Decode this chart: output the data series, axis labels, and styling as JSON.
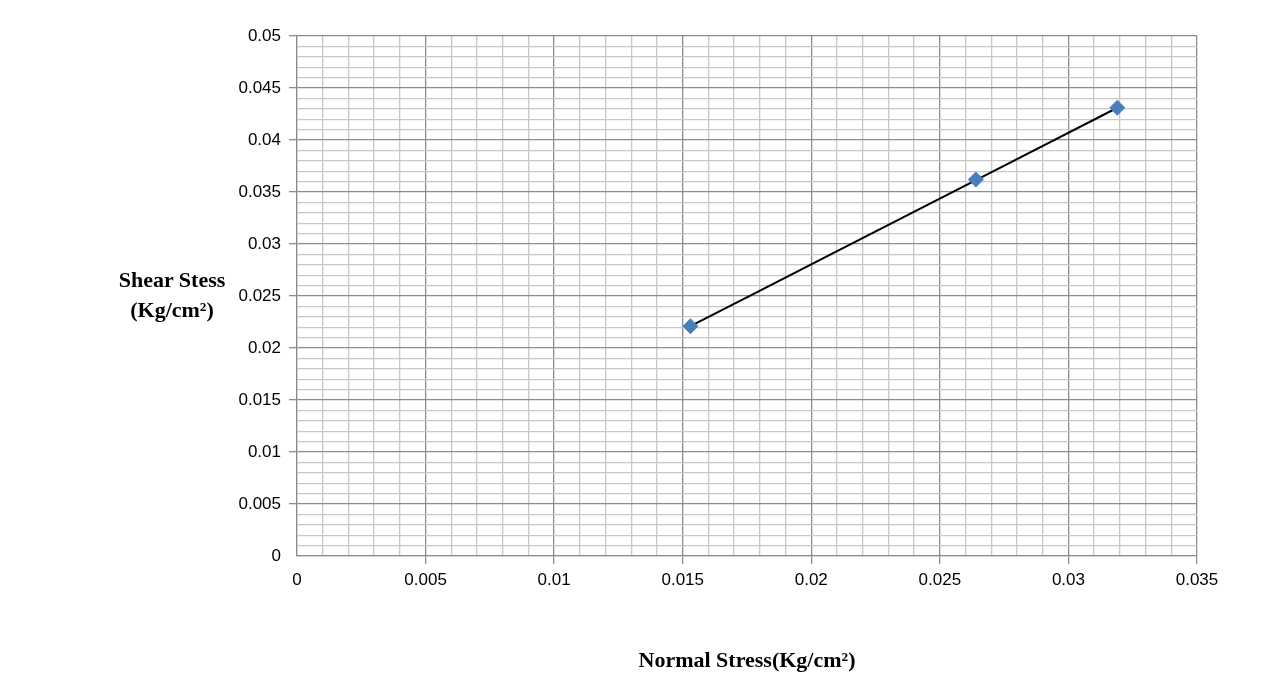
{
  "chart_data": {
    "type": "scatter",
    "xlabel": "Normal Stress(Kg/cm²)",
    "ylabel": "Shear Stess (Kg/cm²)",
    "xlim": [
      0,
      0.035
    ],
    "xticks": [
      0,
      {
        "value": 0.001,
        "label": null
      },
      {
        "value": 0.002,
        "label": null
      },
      {
        "value": 0.003,
        "label": null
      },
      {
        "value": 0.004,
        "label": null
      },
      0.005,
      {
        "value": 0.006,
        "label": null
      },
      {
        "value": 0.007,
        "label": null
      },
      {
        "value": 0.008,
        "label": null
      },
      {
        "value": 0.009,
        "label": null
      },
      0.01,
      {
        "value": 0.011,
        "label": null
      },
      {
        "value": 0.012,
        "label": null
      },
      {
        "value": 0.013,
        "label": null
      },
      {
        "value": 0.014,
        "label": null
      },
      0.015,
      {
        "value": 0.016,
        "label": null
      },
      {
        "value": 0.017,
        "label": null
      },
      {
        "value": 0.018,
        "label": null
      },
      {
        "value": 0.019,
        "label": null
      },
      0.02,
      {
        "value": 0.021,
        "label": null
      },
      {
        "value": 0.022,
        "label": null
      },
      {
        "value": 0.023,
        "label": null
      },
      {
        "value": 0.024,
        "label": null
      },
      0.025,
      {
        "value": 0.026,
        "label": null
      },
      {
        "value": 0.027,
        "label": null
      },
      {
        "value": 0.028,
        "label": null
      },
      {
        "value": 0.029,
        "label": null
      },
      0.03,
      {
        "value": 0.031,
        "label": null
      },
      {
        "value": 0.032,
        "label": null
      },
      {
        "value": 0.033,
        "label": null
      },
      {
        "value": 0.034,
        "label": null
      },
      0.035
    ],
    "ylim": [
      0,
      0.05
    ],
    "yticks": [
      0,
      {
        "value": 0.001,
        "label": null
      },
      {
        "value": 0.002,
        "label": null
      },
      {
        "value": 0.003,
        "label": null
      },
      {
        "value": 0.004,
        "label": null
      },
      0.005,
      {
        "value": 0.006,
        "label": null
      },
      {
        "value": 0.007,
        "label": null
      },
      {
        "value": 0.008,
        "label": null
      },
      {
        "value": 0.009,
        "label": null
      },
      0.01,
      {
        "value": 0.011,
        "label": null
      },
      {
        "value": 0.012,
        "label": null
      },
      {
        "value": 0.013,
        "label": null
      },
      {
        "value": 0.014,
        "label": null
      },
      0.015,
      {
        "value": 0.016,
        "label": null
      },
      {
        "value": 0.017,
        "label": null
      },
      {
        "value": 0.018,
        "label": null
      },
      {
        "value": 0.019,
        "label": null
      },
      0.02,
      {
        "value": 0.021,
        "label": null
      },
      {
        "value": 0.022,
        "label": null
      },
      {
        "value": 0.023,
        "label": null
      },
      {
        "value": 0.024,
        "label": null
      },
      0.025,
      {
        "value": 0.026,
        "label": null
      },
      {
        "value": 0.027,
        "label": null
      },
      {
        "value": 0.028,
        "label": null
      },
      {
        "value": 0.029,
        "label": null
      },
      0.03,
      {
        "value": 0.031,
        "label": null
      },
      {
        "value": 0.032,
        "label": null
      },
      {
        "value": 0.033,
        "label": null
      },
      {
        "value": 0.034,
        "label": null
      },
      0.035,
      {
        "value": 0.036,
        "label": null
      },
      {
        "value": 0.037,
        "label": null
      },
      {
        "value": 0.038,
        "label": null
      },
      {
        "value": 0.039,
        "label": null
      },
      0.04,
      {
        "value": 0.041,
        "label": null
      },
      {
        "value": 0.042,
        "label": null
      },
      {
        "value": 0.043,
        "label": null
      },
      {
        "value": 0.044,
        "label": null
      },
      0.045,
      {
        "value": 0.046,
        "label": null
      },
      {
        "value": 0.047,
        "label": null
      },
      {
        "value": 0.048,
        "label": null
      },
      {
        "value": 0.049,
        "label": null
      },
      0.05
    ],
    "grid": true,
    "legend": false,
    "marker": "diamond",
    "series": [
      {
        "type": "scatter",
        "color": "#4a7ebb",
        "x": [
          0.0153,
          0.0264,
          0.0319
        ],
        "values": [
          0.0221,
          0.0362,
          0.0431
        ]
      },
      {
        "type": "line",
        "color": "#000000",
        "marker": "none",
        "x": [
          0.0153,
          0.0319
        ],
        "values": [
          0.0221,
          0.0431
        ]
      }
    ]
  }
}
